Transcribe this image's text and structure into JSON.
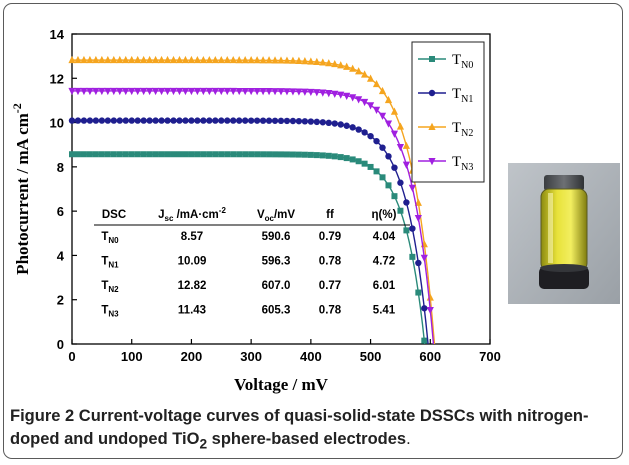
{
  "chart_data": {
    "type": "line",
    "xlabel": "Voltage / mV",
    "ylabel": "Photocurrent / mA cm",
    "ylabel_sup": "-2",
    "xlim": [
      0,
      700
    ],
    "ylim": [
      0,
      14
    ],
    "xticks": [
      "0",
      "100",
      "200",
      "300",
      "400",
      "500",
      "600",
      "700"
    ],
    "yticks": [
      "0",
      "2",
      "4",
      "6",
      "8",
      "10",
      "12",
      "14"
    ],
    "legend_position": "top-right",
    "series": [
      {
        "name": "T",
        "sub": "N0",
        "color": "#2a8a7a",
        "marker": "square",
        "jsc": 8.57,
        "voc": 590.6,
        "ff": 0.79
      },
      {
        "name": "T",
        "sub": "N1",
        "color": "#1f1f8f",
        "marker": "circle",
        "jsc": 10.09,
        "voc": 596.3,
        "ff": 0.78
      },
      {
        "name": "T",
        "sub": "N2",
        "color": "#f5a51f",
        "marker": "triangle-up",
        "jsc": 12.82,
        "voc": 607.0,
        "ff": 0.77
      },
      {
        "name": "T",
        "sub": "N3",
        "color": "#a020e0",
        "marker": "triangle-down",
        "jsc": 11.43,
        "voc": 605.3,
        "ff": 0.78
      }
    ],
    "inset_table": {
      "headers": [
        "DSC",
        "J",
        "sc",
        " /mA·cm",
        "-2",
        "V",
        "oc",
        "/mV",
        "ff",
        "η(%)"
      ],
      "rows": [
        {
          "dsc": "T",
          "sub": "N0",
          "jsc": "8.57",
          "voc": "590.6",
          "ff": "0.79",
          "eta": "4.04"
        },
        {
          "dsc": "T",
          "sub": "N1",
          "jsc": "10.09",
          "voc": "596.3",
          "ff": "0.78",
          "eta": "4.72"
        },
        {
          "dsc": "T",
          "sub": "N2",
          "jsc": "12.82",
          "voc": "607.0",
          "ff": "0.77",
          "eta": "6.01"
        },
        {
          "dsc": "T",
          "sub": "N3",
          "jsc": "11.43",
          "voc": "605.3",
          "ff": "0.78",
          "eta": "5.41"
        }
      ]
    }
  },
  "caption": {
    "label": "Figure 2",
    "text_a": " Current-voltage curves of quasi-solid-state DSSCs with nitrogen-doped and undoped TiO",
    "text_sub": "2",
    "text_b": " sphere-based electrodes",
    "text_end": "."
  },
  "photo": {
    "subject": "vial"
  }
}
